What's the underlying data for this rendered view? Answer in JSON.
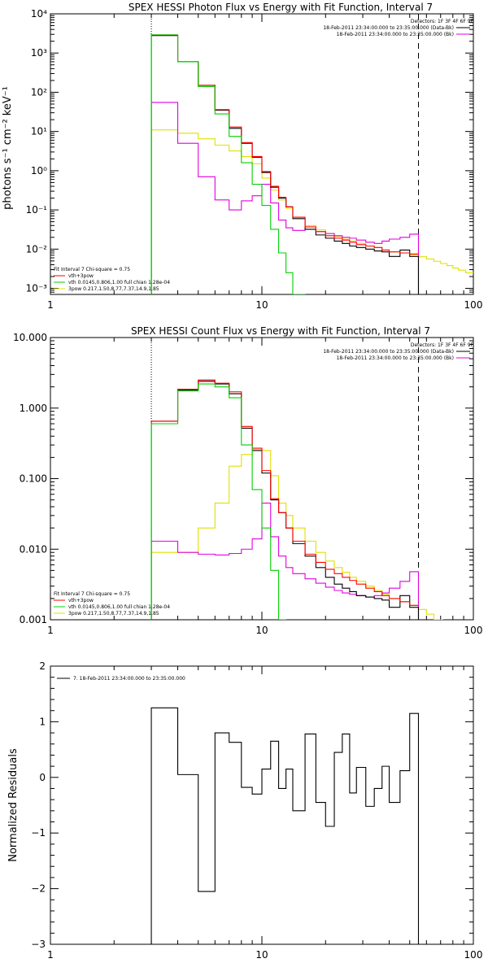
{
  "chart_data": [
    {
      "type": "line",
      "title": "SPEX HESSI Photon Flux vs Energy with Fit Function, Interval 7",
      "ylabel": "photons s⁻¹ cm⁻² keV⁻¹",
      "xlabel": "",
      "xscale": "log",
      "yscale": "log",
      "xlim": [
        1,
        100
      ],
      "ylim": [
        0.0007,
        10000
      ],
      "xtick_labels": [
        "1",
        "10",
        "100"
      ],
      "ytick_labels": [
        "10⁻³",
        "10⁻²",
        "10⁻¹",
        "10⁰",
        "10¹",
        "10²",
        "10³",
        "10⁴"
      ],
      "legend_right": {
        "header": "Detectors: 1F 3F 4F 6F 9F",
        "entries": [
          {
            "label": "18-Feb-2011 23:34:00.000 to 23:35:00.000 (Data-Bk)",
            "color": "#000000"
          },
          {
            "label": "18-Feb-2011 23:34:00.000 to 23:35:00.000 (Bk)",
            "color": "#e000e0"
          }
        ]
      },
      "legend_left": {
        "header": "Fit Interval  7   Chi-square = 0.75",
        "entries": [
          {
            "label": "vth+3pow",
            "color": "#ff0000"
          },
          {
            "label": "vth 0.0145,0.806,1.00  full chian 1.28e-04",
            "color": "#00d000"
          },
          {
            "label": "3pow 0.217,1.50,8.77,7.37,14.9,1.85",
            "color": "#e0e000"
          }
        ]
      },
      "vlines": [
        {
          "x": 3,
          "style": "dotted"
        },
        {
          "x": 55,
          "style": "dashed"
        }
      ],
      "edges": [
        3,
        4,
        5,
        6,
        7,
        8,
        9,
        10,
        11,
        12,
        13,
        14,
        16,
        18,
        20,
        22,
        24,
        26,
        28,
        31,
        34,
        37,
        40,
        45,
        50,
        55
      ],
      "series": [
        {
          "name": "Data-Bk",
          "color": "#000000",
          "values": [
            2800,
            600,
            150,
            35,
            12,
            5,
            2.2,
            0.9,
            0.38,
            0.2,
            0.12,
            0.06,
            0.032,
            0.023,
            0.019,
            0.016,
            0.014,
            0.012,
            0.011,
            0.01,
            0.009,
            0.0085,
            0.0065,
            0.0095,
            0.0065
          ]
        },
        {
          "name": "Bk",
          "color": "#e000e0",
          "values": [
            55,
            5,
            0.7,
            0.18,
            0.1,
            0.17,
            0.23,
            0.45,
            0.15,
            0.055,
            0.035,
            0.03,
            0.032,
            0.028,
            0.025,
            0.022,
            0.02,
            0.019,
            0.017,
            0.015,
            0.014,
            0.016,
            0.018,
            0.02,
            0.024
          ]
        },
        {
          "name": "vth+3pow",
          "color": "#ff0000",
          "values": [
            2900,
            600,
            150,
            36,
            13,
            5.2,
            2.3,
            0.95,
            0.4,
            0.21,
            0.12,
            0.065,
            0.037,
            0.028,
            0.022,
            0.019,
            0.017,
            0.015,
            0.013,
            0.012,
            0.011,
            0.0095,
            0.0085,
            0.008,
            0.0075
          ]
        },
        {
          "name": "vth",
          "color": "#00d000",
          "values": [
            2900,
            600,
            140,
            28,
            7.5,
            1.6,
            0.45,
            0.13,
            0.032,
            0.008,
            0.0025,
            0.0007
          ]
        },
        {
          "name": "3pow",
          "color": "#e0e000",
          "values": [
            11,
            9,
            6.5,
            4.5,
            3.2,
            2.3,
            1.5,
            0.65,
            0.32,
            0.18,
            0.11,
            0.065,
            0.04,
            0.031,
            0.025,
            0.021,
            0.018,
            0.016,
            0.014,
            0.012,
            0.011,
            0.0095,
            0.0085,
            0.008,
            0.0072,
            0.0064,
            0.0056,
            0.0049,
            0.0043,
            0.0038,
            0.0033,
            0.0029,
            0.0025
          ]
        }
      ],
      "yellow_ext_edges": [
        55,
        60,
        65,
        70,
        75,
        80,
        85,
        92,
        100
      ]
    },
    {
      "type": "line",
      "title": "SPEX HESSI Count Flux vs Energy with Fit Function, Interval 7",
      "ylabel": "",
      "xlabel": "",
      "xscale": "log",
      "yscale": "log",
      "xlim": [
        1,
        100
      ],
      "ylim": [
        0.001,
        10
      ],
      "xtick_labels": [
        "1",
        "10",
        "100"
      ],
      "ytick_labels": [
        "0.001",
        "0.010",
        "0.100",
        "1.000",
        "10.000"
      ],
      "legend_right": {
        "header": "Detectors: 1F 3F 4F 6F 9F",
        "entries": [
          {
            "label": "18-Feb-2011 23:34:00.000 to 23:35:00.000 (Data-Bk)",
            "color": "#000000"
          },
          {
            "label": "18-Feb-2011 23:34:00.000 to 23:35:00.000 (Bk)",
            "color": "#e000e0"
          }
        ]
      },
      "legend_left": {
        "header": "Fit Interval  7   Chi-square = 0.75",
        "entries": [
          {
            "label": "vth+3pow",
            "color": "#ff0000"
          },
          {
            "label": "vth 0.0145,0.806,1.00  full chian 1.28e-04",
            "color": "#00d000"
          },
          {
            "label": "3pow 0.217,1.50,8.77,7.37,14.9,1.85",
            "color": "#e0e000"
          }
        ]
      },
      "vlines": [
        {
          "x": 3,
          "style": "dotted"
        },
        {
          "x": 55,
          "style": "dashed"
        }
      ],
      "edges": [
        3,
        4,
        5,
        6,
        7,
        8,
        9,
        10,
        11,
        12,
        13,
        14,
        16,
        18,
        20,
        22,
        24,
        26,
        28,
        31,
        34,
        37,
        40,
        45,
        50,
        55
      ],
      "series": [
        {
          "name": "Data-Bk",
          "color": "#000000",
          "values": [
            0.65,
            1.8,
            2.4,
            2.2,
            1.6,
            0.52,
            0.25,
            0.12,
            0.05,
            0.033,
            0.02,
            0.012,
            0.008,
            0.0055,
            0.004,
            0.0032,
            0.0028,
            0.0025,
            0.0022,
            0.0021,
            0.002,
            0.0019,
            0.0015,
            0.0022,
            0.0015
          ]
        },
        {
          "name": "Bk",
          "color": "#e000e0",
          "values": [
            0.013,
            0.009,
            0.0085,
            0.0083,
            0.0087,
            0.01,
            0.014,
            0.045,
            0.015,
            0.008,
            0.0055,
            0.0045,
            0.0038,
            0.0033,
            0.0029,
            0.0026,
            0.0024,
            0.0023,
            0.0022,
            0.0021,
            0.0022,
            0.0024,
            0.0028,
            0.0035,
            0.0048
          ]
        },
        {
          "name": "vth+3pow",
          "color": "#ff0000",
          "values": [
            0.65,
            1.85,
            2.5,
            2.25,
            1.7,
            0.55,
            0.27,
            0.13,
            0.052,
            0.033,
            0.02,
            0.013,
            0.0085,
            0.0065,
            0.0052,
            0.0045,
            0.004,
            0.0036,
            0.0032,
            0.0028,
            0.0025,
            0.0022,
            0.002,
            0.0018,
            0.0016
          ]
        },
        {
          "name": "vth",
          "color": "#00d000",
          "values": [
            0.6,
            1.75,
            2.2,
            2,
            1.4,
            0.3,
            0.07,
            0.02,
            0.005,
            0.0008
          ]
        },
        {
          "name": "3pow",
          "color": "#e0e000",
          "values": [
            0.009,
            0.009,
            0.02,
            0.045,
            0.15,
            0.22,
            0.26,
            0.25,
            0.11,
            0.045,
            0.03,
            0.02,
            0.013,
            0.009,
            0.0068,
            0.0055,
            0.0047,
            0.004,
            0.0035,
            0.003,
            0.0026,
            0.0023,
            0.002,
            0.0018,
            0.0016,
            0.0014,
            0.0012,
            0.001
          ]
        }
      ],
      "yellow_ext_edges": [
        55,
        60,
        65,
        72
      ]
    },
    {
      "type": "line",
      "title": "",
      "ylabel": "Normalized Residuals",
      "xlabel": "",
      "xscale": "log",
      "yscale": "linear",
      "xlim": [
        1,
        100
      ],
      "ylim": [
        -3,
        2
      ],
      "xtick_labels": [
        "1",
        "10",
        "100"
      ],
      "ytick_labels": [
        "−3",
        "−2",
        "−1",
        "0",
        "1",
        "2"
      ],
      "legend_right": null,
      "legend_left": {
        "header": "",
        "entries": [
          {
            "label": "7. 18-Feb-2011 23:34:00.000 to 23:35:00.000",
            "color": "#000000"
          }
        ]
      },
      "vlines": [],
      "edges": [
        3,
        4,
        5,
        6,
        7,
        8,
        9,
        10,
        11,
        12,
        13,
        14,
        16,
        18,
        20,
        22,
        24,
        26,
        28,
        31,
        34,
        37,
        40,
        45,
        50,
        55
      ],
      "series": [
        {
          "name": "residuals",
          "color": "#000000",
          "values": [
            1.25,
            0.05,
            -2.05,
            0.8,
            0.63,
            -0.18,
            -0.3,
            0.15,
            0.65,
            -0.2,
            0.15,
            -0.6,
            0.78,
            -0.45,
            -0.88,
            0.45,
            0.78,
            -0.28,
            0.18,
            -0.52,
            -0.2,
            0.2,
            -0.45,
            0.12,
            1.15
          ]
        }
      ],
      "yellow_ext_edges": []
    }
  ]
}
